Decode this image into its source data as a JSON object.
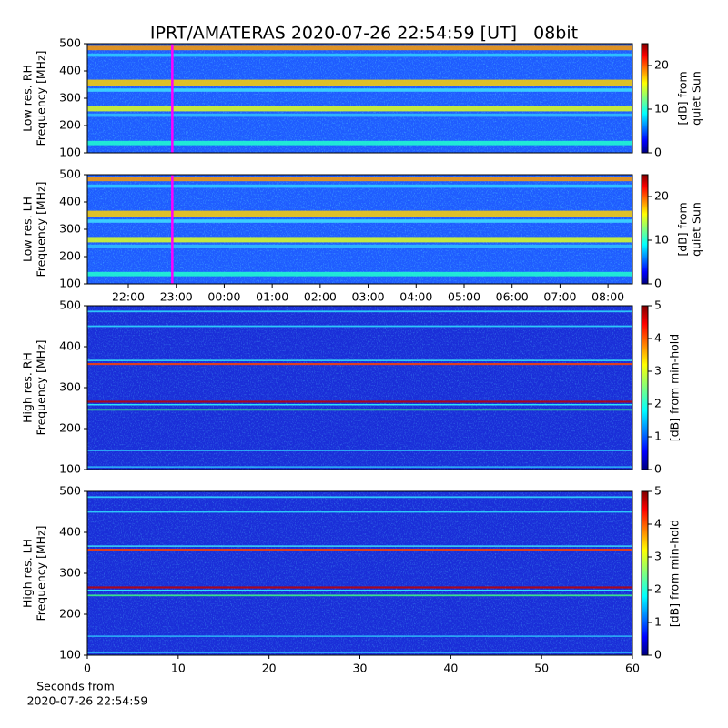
{
  "title": "IPRT/AMATERAS 2020-07-26 22:54:59 [UT]   08bit",
  "chart_data": [
    {
      "type": "heatmap",
      "ylabel": [
        "Low res. RH",
        "Frequency [MHz]"
      ],
      "ylim": [
        100,
        500
      ],
      "yticks": [
        100,
        200,
        300,
        400,
        500
      ],
      "xlim": [
        21.146,
        32.51
      ],
      "marker_x": 22.917,
      "marker_color": "#ff00ff",
      "colorbar_label": [
        "[dB] from",
        "quiet Sun"
      ],
      "clim": [
        0,
        25
      ],
      "cticks": [
        0,
        10,
        20
      ]
    },
    {
      "type": "heatmap",
      "ylabel": [
        "Low res. LH",
        "Frequency [MHz]"
      ],
      "ylim": [
        100,
        500
      ],
      "yticks": [
        100,
        200,
        300,
        400,
        500
      ],
      "xlim": [
        21.146,
        32.51
      ],
      "marker_x": 22.917,
      "marker_color": "#ff00ff",
      "xticks": [
        {
          "value": 22,
          "label": "22:00"
        },
        {
          "value": 23,
          "label": "23:00"
        },
        {
          "value": 24,
          "label": "00:00"
        },
        {
          "value": 25,
          "label": "01:00"
        },
        {
          "value": 26,
          "label": "02:00"
        },
        {
          "value": 27,
          "label": "03:00"
        },
        {
          "value": 28,
          "label": "04:00"
        },
        {
          "value": 29,
          "label": "05:00"
        },
        {
          "value": 30,
          "label": "06:00"
        },
        {
          "value": 31,
          "label": "07:00"
        },
        {
          "value": 32,
          "label": "08:00"
        }
      ],
      "colorbar_label": [
        "[dB] from",
        "quiet Sun"
      ],
      "clim": [
        0,
        25
      ],
      "cticks": [
        0,
        10,
        20
      ]
    },
    {
      "type": "heatmap",
      "ylabel": [
        "High res. RH",
        "Frequency [MHz]"
      ],
      "ylim": [
        100,
        500
      ],
      "yticks": [
        100,
        200,
        300,
        400,
        500
      ],
      "xlim": [
        0,
        60
      ],
      "colorbar_label": [
        "[dB] from min-hold"
      ],
      "clim": [
        0,
        5
      ],
      "cticks": [
        0,
        1,
        2,
        3,
        4,
        5
      ]
    },
    {
      "type": "heatmap",
      "ylabel": [
        "High res. LH",
        "Frequency [MHz]"
      ],
      "ylim": [
        100,
        500
      ],
      "yticks": [
        100,
        200,
        300,
        400,
        500
      ],
      "xlim": [
        0,
        60
      ],
      "xticks": [
        0,
        10,
        20,
        30,
        40,
        50,
        60
      ],
      "xlabel": [
        "Seconds from",
        "2020-07-26 22:54:59"
      ],
      "colorbar_label": [
        "[dB] from min-hold"
      ],
      "clim": [
        0,
        5
      ],
      "cticks": [
        0,
        1,
        2,
        3,
        4,
        5
      ]
    }
  ]
}
